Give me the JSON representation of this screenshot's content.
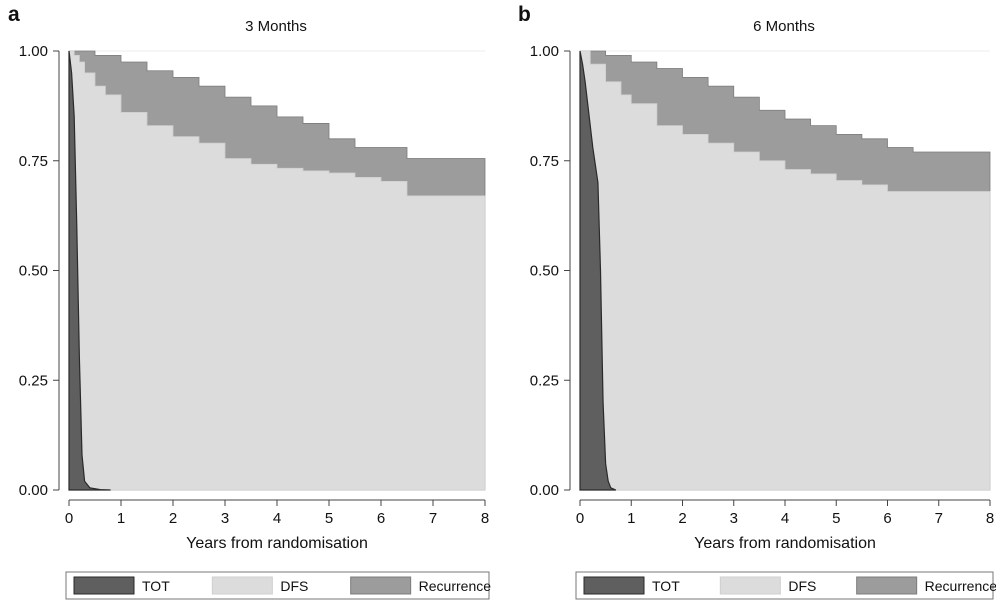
{
  "figure": {
    "panels": [
      {
        "letter": "a",
        "title": "3 Months"
      },
      {
        "letter": "b",
        "title": "6 Months"
      }
    ]
  },
  "colors": {
    "tot": "#5f5f5f",
    "dfs": "#dcdcdc",
    "recurrence": "#9c9c9c",
    "outline": "#2a2a2a",
    "axis": "#444444",
    "grid": "#ececec"
  },
  "chart_data": [
    {
      "type": "area",
      "title": "3 Months",
      "panel": "a",
      "xlabel": "Years from randomisation",
      "ylabel": "",
      "xlim": [
        0,
        8
      ],
      "ylim": [
        0,
        1
      ],
      "xticks": [
        0,
        1,
        2,
        3,
        4,
        5,
        6,
        7,
        8
      ],
      "yticks": [
        "0.00",
        "0.25",
        "0.50",
        "0.75",
        "1.00"
      ],
      "legend": {
        "position": "bottom",
        "entries": [
          "TOT",
          "DFS",
          "Recurrence"
        ]
      },
      "series": [
        {
          "name": "TOT",
          "x": [
            0,
            0.05,
            0.1,
            0.15,
            0.2,
            0.25,
            0.3,
            0.4,
            0.6,
            0.8
          ],
          "values": [
            1.0,
            0.95,
            0.85,
            0.6,
            0.3,
            0.08,
            0.02,
            0.005,
            0.001,
            0
          ]
        },
        {
          "name": "DFS",
          "x": [
            0,
            0.1,
            0.2,
            0.3,
            0.5,
            0.7,
            1,
            1.5,
            2,
            2.5,
            3,
            3.5,
            4,
            4.5,
            5,
            5.5,
            6,
            6.5,
            7,
            8
          ],
          "values": [
            1.0,
            0.99,
            0.975,
            0.95,
            0.92,
            0.9,
            0.86,
            0.83,
            0.805,
            0.79,
            0.755,
            0.742,
            0.733,
            0.727,
            0.722,
            0.712,
            0.703,
            0.67,
            0.67,
            0.67
          ]
        },
        {
          "name": "Recurrence",
          "x": [
            0,
            0.5,
            1,
            1.5,
            2,
            2.5,
            3,
            3.5,
            4,
            4.5,
            5,
            5.5,
            6,
            6.5,
            7,
            8
          ],
          "values": [
            1.0,
            0.99,
            0.975,
            0.955,
            0.94,
            0.92,
            0.895,
            0.875,
            0.85,
            0.835,
            0.8,
            0.78,
            0.78,
            0.755,
            0.755,
            0.755
          ]
        }
      ]
    },
    {
      "type": "area",
      "title": "6 Months",
      "panel": "b",
      "xlabel": "Years from randomisation",
      "ylabel": "",
      "xlim": [
        0,
        8
      ],
      "ylim": [
        0,
        1
      ],
      "xticks": [
        0,
        1,
        2,
        3,
        4,
        5,
        6,
        7,
        8
      ],
      "yticks": [
        "0.00",
        "0.25",
        "0.50",
        "0.75",
        "1.00"
      ],
      "legend": {
        "position": "bottom",
        "entries": [
          "TOT",
          "DFS",
          "Recurrence"
        ]
      },
      "series": [
        {
          "name": "TOT",
          "x": [
            0,
            0.05,
            0.1,
            0.15,
            0.2,
            0.25,
            0.3,
            0.35,
            0.4,
            0.45,
            0.5,
            0.55,
            0.6,
            0.7
          ],
          "values": [
            1.0,
            0.97,
            0.93,
            0.88,
            0.83,
            0.78,
            0.74,
            0.7,
            0.5,
            0.2,
            0.06,
            0.02,
            0.005,
            0
          ]
        },
        {
          "name": "DFS",
          "x": [
            0,
            0.2,
            0.5,
            0.8,
            1,
            1.5,
            2,
            2.5,
            3,
            3.5,
            4,
            4.5,
            5,
            5.5,
            6,
            6.5,
            7,
            8
          ],
          "values": [
            1.0,
            0.97,
            0.93,
            0.9,
            0.88,
            0.83,
            0.81,
            0.79,
            0.77,
            0.75,
            0.73,
            0.72,
            0.705,
            0.695,
            0.68,
            0.68,
            0.68,
            0.68
          ]
        },
        {
          "name": "Recurrence",
          "x": [
            0,
            0.5,
            1,
            1.5,
            2,
            2.5,
            3,
            3.5,
            4,
            4.5,
            5,
            5.5,
            6,
            6.5,
            7,
            8
          ],
          "values": [
            1.0,
            0.99,
            0.975,
            0.96,
            0.94,
            0.92,
            0.895,
            0.865,
            0.845,
            0.83,
            0.81,
            0.8,
            0.78,
            0.77,
            0.77,
            0.77
          ]
        }
      ]
    }
  ]
}
